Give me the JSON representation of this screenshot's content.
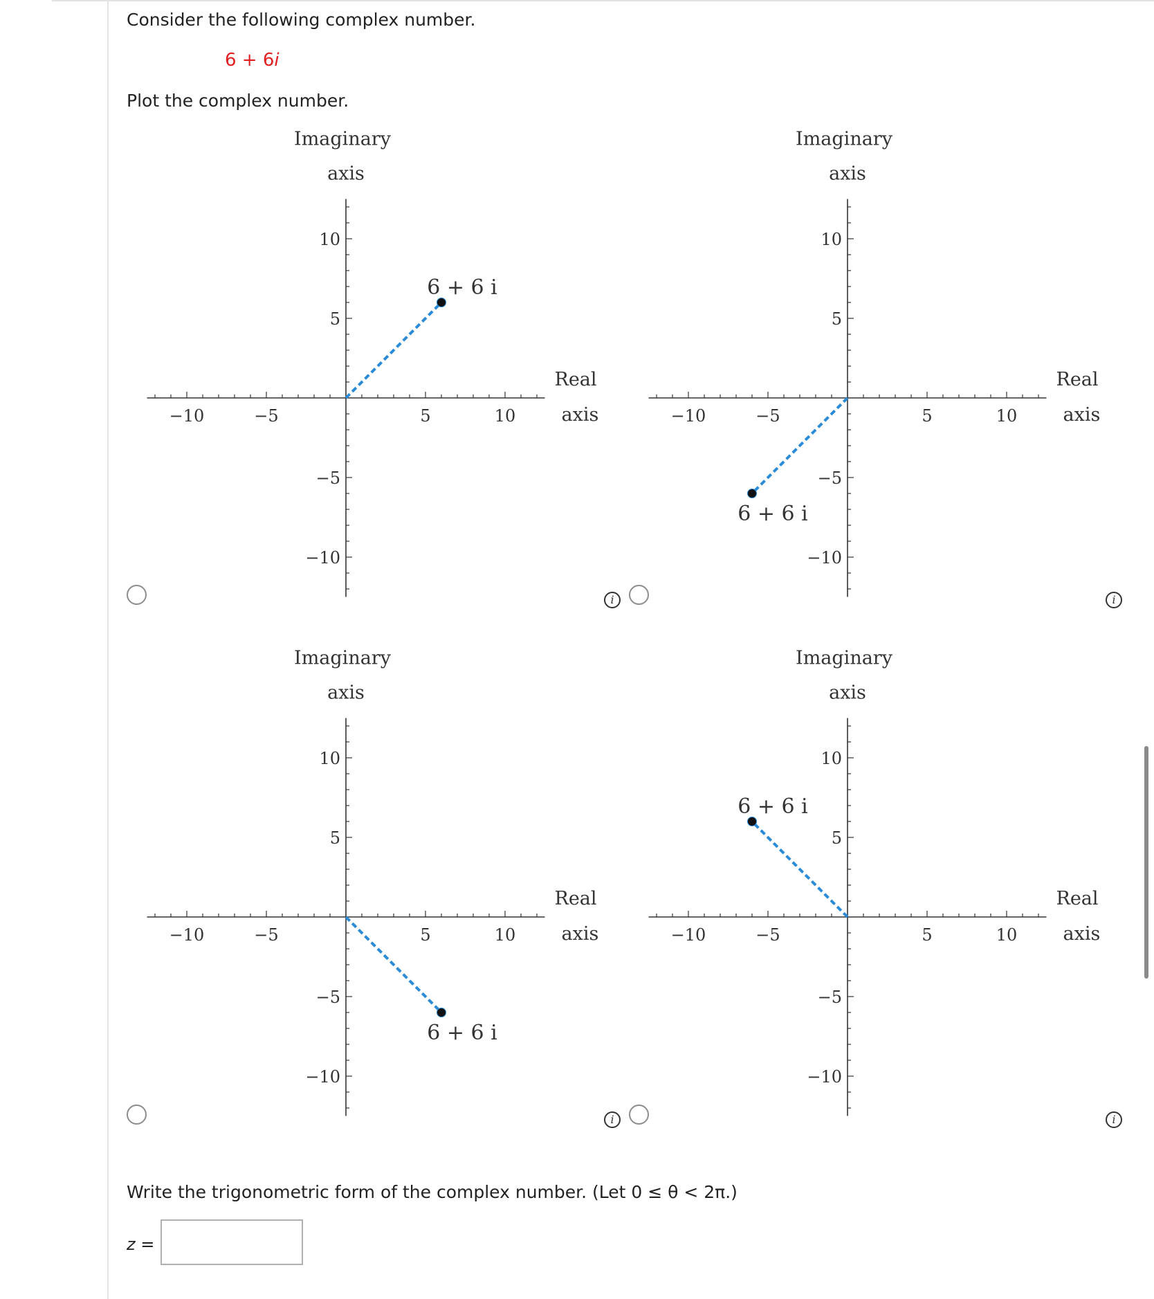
{
  "question": {
    "intro": "Consider the following complex number.",
    "number_real": "6",
    "number_plus": " + ",
    "number_imag": "6",
    "number_i": "i",
    "plot_prompt": "Plot the complex number.",
    "trig_prompt": "Write the trigonometric form of the complex number. (Let 0 ≤ θ < 2π.)",
    "answer_label": "z",
    "answer_equals": " =",
    "answer_value": ""
  },
  "options": [
    {
      "point_label": "6 + 6 i",
      "chart_data": {
        "type": "scatter",
        "x": [
          6
        ],
        "y": [
          6
        ],
        "xlabel": "Real axis",
        "ylabel": "Imaginary axis",
        "xlim": [
          -12.5,
          12.5
        ],
        "ylim": [
          -12.5,
          12.5
        ],
        "xticks": [
          -10,
          -5,
          5,
          10
        ],
        "yticks": [
          10,
          5,
          -5,
          -10
        ],
        "segment_from_origin": true
      }
    },
    {
      "point_label": "6 + 6 i",
      "chart_data": {
        "type": "scatter",
        "x": [
          -6
        ],
        "y": [
          -6
        ],
        "xlabel": "Real axis",
        "ylabel": "Imaginary axis",
        "xlim": [
          -12.5,
          12.5
        ],
        "ylim": [
          -12.5,
          12.5
        ],
        "xticks": [
          -10,
          -5,
          5,
          10
        ],
        "yticks": [
          10,
          5,
          -5,
          -10
        ],
        "segment_from_origin": true
      }
    },
    {
      "point_label": "6 + 6 i",
      "chart_data": {
        "type": "scatter",
        "x": [
          6
        ],
        "y": [
          -6
        ],
        "xlabel": "Real axis",
        "ylabel": "Imaginary axis",
        "xlim": [
          -12.5,
          12.5
        ],
        "ylim": [
          -12.5,
          12.5
        ],
        "xticks": [
          -10,
          -5,
          5,
          10
        ],
        "yticks": [
          10,
          5,
          -5,
          -10
        ],
        "segment_from_origin": true
      }
    },
    {
      "point_label": "6 + 6 i",
      "chart_data": {
        "type": "scatter",
        "x": [
          -6
        ],
        "y": [
          6
        ],
        "xlabel": "Real axis",
        "ylabel": "Imaginary axis",
        "xlim": [
          -12.5,
          12.5
        ],
        "ylim": [
          -12.5,
          12.5
        ],
        "xticks": [
          -10,
          -5,
          5,
          10
        ],
        "yticks": [
          10,
          5,
          -5,
          -10
        ],
        "segment_from_origin": true
      }
    }
  ],
  "labels": {
    "imag_line1": "Imaginary",
    "imag_line2": "axis",
    "real_line1": "Real",
    "real_line2": "axis",
    "info_glyph": "i"
  },
  "colors": {
    "number": "#e02020",
    "segment": "#2b8bd6",
    "point": "#111111",
    "axis": "#333333"
  },
  "icons": {
    "radio": "radio-button",
    "info": "info-icon"
  }
}
